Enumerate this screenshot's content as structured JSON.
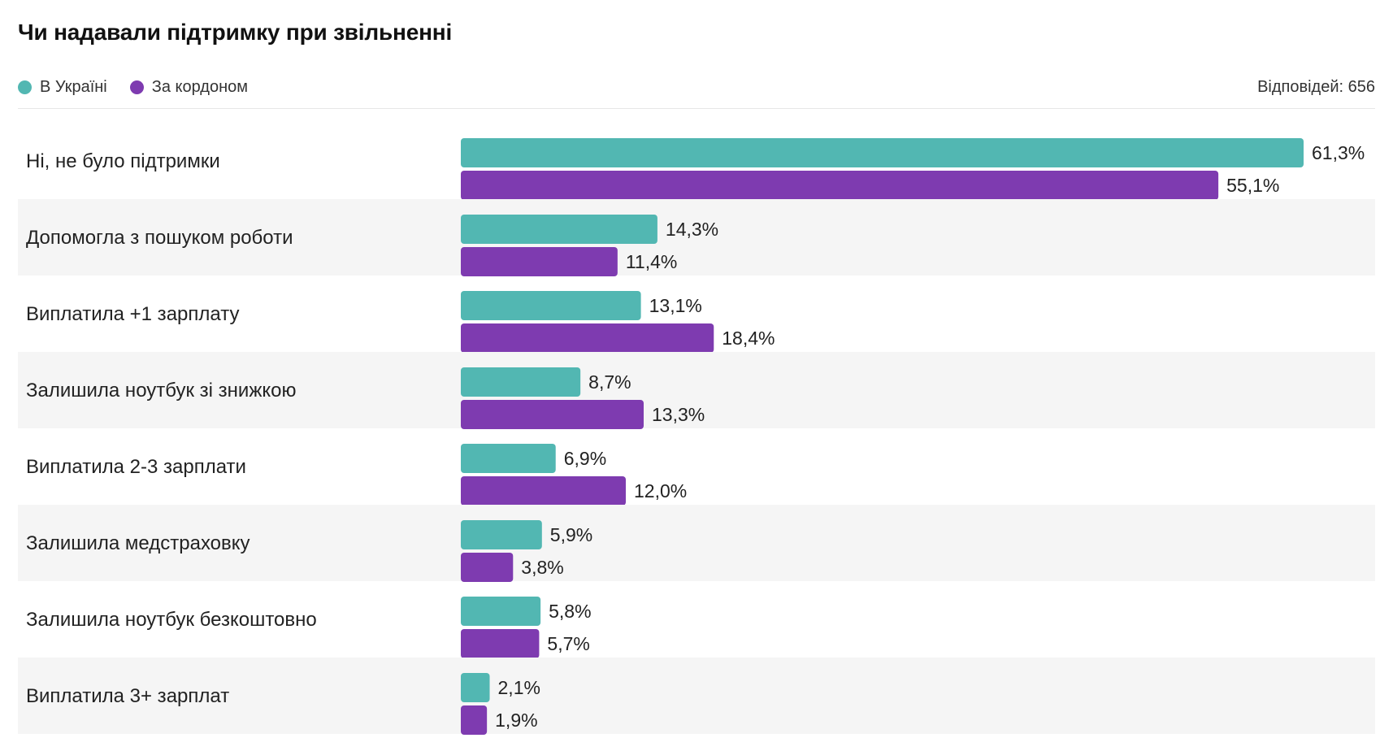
{
  "title": "Чи надавали підтримку при звільненні",
  "legend": {
    "ukraine": "В Україні",
    "abroad": "За кордоном"
  },
  "responses": "Відповідей: 656",
  "colors": {
    "ukraine": "#52b7b2",
    "abroad": "#7e3bb0",
    "row_alt": "#f5f5f5"
  },
  "chart_data": {
    "type": "bar",
    "orientation": "horizontal",
    "title": "Чи надавали підтримку при звільненні",
    "categories": [
      "Ні, не було підтримки",
      "Допомогла з пошуком роботи",
      "Виплатила +1 зарплату",
      "Залишила ноутбук зі знижкою",
      "Виплатила 2-3 зарплати",
      "Залишила медстраховку",
      "Залишила ноутбук безкоштовно",
      "Виплатила 3+ зарплат"
    ],
    "series": [
      {
        "name": "В Україні",
        "values": [
          61.3,
          14.3,
          13.1,
          8.7,
          6.9,
          5.9,
          5.8,
          2.1
        ],
        "labels": [
          "61,3%",
          "14,3%",
          "13,1%",
          "8,7%",
          "6,9%",
          "5,9%",
          "5,8%",
          "2,1%"
        ]
      },
      {
        "name": "За кордоном",
        "values": [
          55.1,
          11.4,
          18.4,
          13.3,
          12.0,
          3.8,
          5.7,
          1.9
        ],
        "labels": [
          "55,1%",
          "11,4%",
          "18,4%",
          "13,3%",
          "12,0%",
          "3,8%",
          "5,7%",
          "1,9%"
        ]
      }
    ],
    "unit": "%",
    "xlim": [
      0,
      61.3
    ],
    "grid": false,
    "legend_position": "top-left"
  }
}
